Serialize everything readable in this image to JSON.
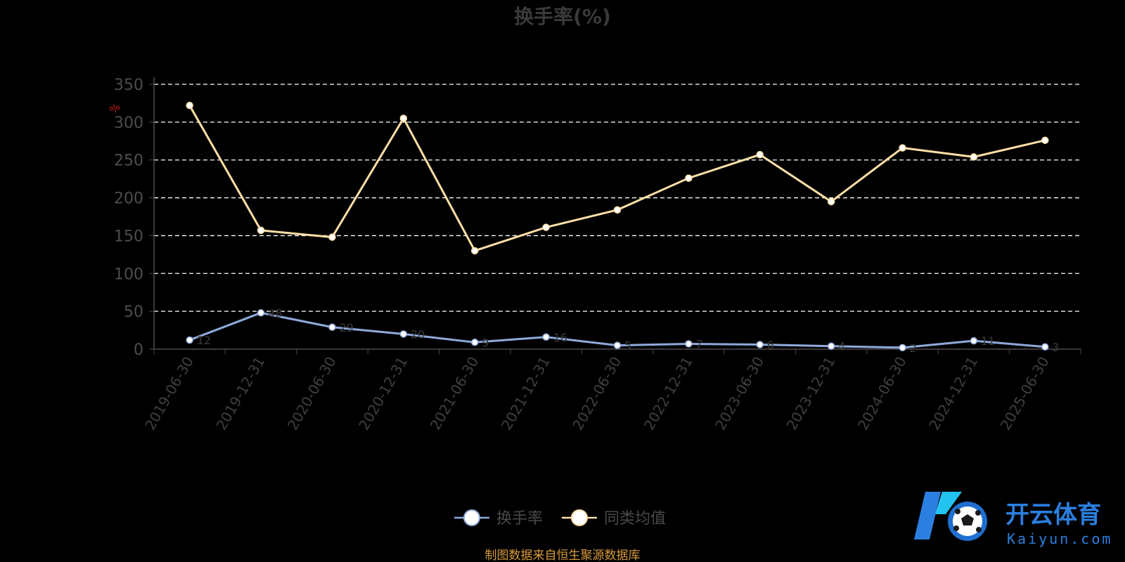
{
  "chart_data": {
    "type": "line",
    "title": "换手率(%)",
    "ylabel": "%",
    "ylim": [
      0,
      350
    ],
    "yticks": [
      0,
      50,
      100,
      150,
      200,
      250,
      300,
      350
    ],
    "grid": true,
    "legend_position": "bottom-center",
    "categories": [
      "2019-06-30",
      "2019-12-31",
      "2020-06-30",
      "2020-12-31",
      "2021-06-30",
      "2021-12-31",
      "2022-06-30",
      "2022-12-31",
      "2023-06-30",
      "2023-12-31",
      "2024-06-30",
      "2024-12-31",
      "2025-06-30"
    ],
    "series": [
      {
        "name": "换手率",
        "color": "#8eaadc",
        "values": [
          12,
          48,
          29,
          20,
          9,
          16,
          5,
          7,
          6,
          4,
          2,
          11,
          3
        ]
      },
      {
        "name": "同类均值",
        "color": "#ffdfa6",
        "values": [
          322,
          157,
          148,
          305,
          130,
          161,
          184,
          226,
          257,
          195,
          266,
          254,
          276
        ]
      }
    ],
    "source": "制图数据来自恒生聚源数据库"
  },
  "brand": {
    "logo_icon": "soccer-ball-k-logo",
    "name_cn": "开云体育",
    "name_en": "Kaiyun.com",
    "colors": {
      "primary": "#2b7fe0",
      "secondary": "#23c3f0"
    }
  }
}
